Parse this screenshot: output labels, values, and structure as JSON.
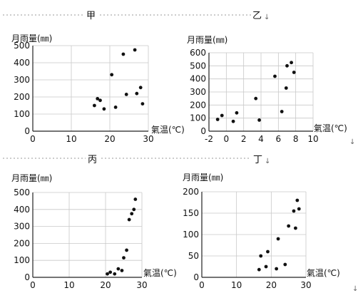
{
  "headers": {
    "top": [
      "甲",
      "乙"
    ],
    "bottom": [
      "丙",
      "丁"
    ],
    "marker": "↓"
  },
  "chart_data": [
    {
      "label": "甲",
      "type": "scatter",
      "ylabel": "月雨量(㎜)",
      "xlabel": "氣温(℃)",
      "xlim": [
        0,
        30
      ],
      "ylim": [
        0,
        500
      ],
      "xticks": [
        0,
        10,
        20,
        30
      ],
      "yticks": [
        0,
        100,
        200,
        300,
        400,
        500
      ],
      "grid": true,
      "points": [
        {
          "x": 16,
          "y": 150
        },
        {
          "x": 16.8,
          "y": 190
        },
        {
          "x": 17.5,
          "y": 180
        },
        {
          "x": 18.5,
          "y": 130
        },
        {
          "x": 20.5,
          "y": 330
        },
        {
          "x": 21.5,
          "y": 140
        },
        {
          "x": 23.5,
          "y": 450
        },
        {
          "x": 24.3,
          "y": 215
        },
        {
          "x": 26.5,
          "y": 475
        },
        {
          "x": 27,
          "y": 220
        },
        {
          "x": 28,
          "y": 255
        },
        {
          "x": 28.5,
          "y": 160
        }
      ]
    },
    {
      "label": "乙",
      "type": "scatter",
      "ylabel": "月雨量(㎜)",
      "xlabel": "氣温(℃)",
      "xlim": [
        -2,
        10
      ],
      "ylim": [
        0,
        600
      ],
      "xticks": [
        -2,
        0,
        2,
        4,
        6,
        8,
        10
      ],
      "yticks": [
        0,
        100,
        200,
        300,
        400,
        500,
        600
      ],
      "grid": true,
      "points": [
        {
          "x": -1,
          "y": 90
        },
        {
          "x": -0.5,
          "y": 120
        },
        {
          "x": 0.8,
          "y": 75
        },
        {
          "x": 1.2,
          "y": 140
        },
        {
          "x": 3.4,
          "y": 250
        },
        {
          "x": 3.8,
          "y": 85
        },
        {
          "x": 5.6,
          "y": 420
        },
        {
          "x": 6.4,
          "y": 150
        },
        {
          "x": 6.9,
          "y": 330
        },
        {
          "x": 7,
          "y": 500
        },
        {
          "x": 7.5,
          "y": 525
        },
        {
          "x": 7.8,
          "y": 450
        }
      ]
    },
    {
      "label": "丙",
      "type": "scatter",
      "ylabel": "月雨量(㎜)",
      "xlabel": "氣温(℃)",
      "xlim": [
        0,
        30
      ],
      "ylim": [
        0,
        500
      ],
      "xticks": [
        0,
        10,
        20,
        30
      ],
      "yticks": [
        0,
        100,
        200,
        300,
        400,
        500
      ],
      "grid": true,
      "points": [
        {
          "x": 20.5,
          "y": 20
        },
        {
          "x": 21.3,
          "y": 30
        },
        {
          "x": 22.5,
          "y": 20
        },
        {
          "x": 23.5,
          "y": 50
        },
        {
          "x": 24.5,
          "y": 40
        },
        {
          "x": 25,
          "y": 115
        },
        {
          "x": 25.8,
          "y": 160
        },
        {
          "x": 26.5,
          "y": 340
        },
        {
          "x": 27.2,
          "y": 375
        },
        {
          "x": 27.8,
          "y": 400
        },
        {
          "x": 28.2,
          "y": 460
        }
      ]
    },
    {
      "label": "丁",
      "type": "scatter",
      "ylabel": "月雨量(㎜)",
      "xlabel": "氣温(℃)",
      "xlim": [
        0,
        30
      ],
      "ylim": [
        0,
        200
      ],
      "xticks": [
        0,
        10,
        20,
        30
      ],
      "yticks": [
        0,
        50,
        100,
        150,
        200
      ],
      "grid": true,
      "points": [
        {
          "x": 16.5,
          "y": 18
        },
        {
          "x": 17,
          "y": 50
        },
        {
          "x": 18.5,
          "y": 25
        },
        {
          "x": 19,
          "y": 60
        },
        {
          "x": 21.5,
          "y": 20
        },
        {
          "x": 22,
          "y": 90
        },
        {
          "x": 24,
          "y": 30
        },
        {
          "x": 25,
          "y": 120
        },
        {
          "x": 26.5,
          "y": 155
        },
        {
          "x": 27,
          "y": 115
        },
        {
          "x": 27.5,
          "y": 180
        },
        {
          "x": 28,
          "y": 160
        }
      ]
    }
  ]
}
